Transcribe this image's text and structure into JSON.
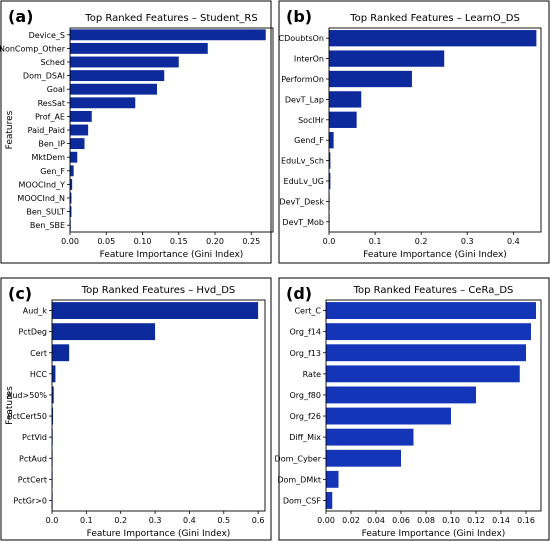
{
  "colors": {
    "bar": "#0c2a9c",
    "bar_alt": "#1535b8",
    "axis": "#000000",
    "text": "#000000"
  },
  "chart_data": [
    {
      "type": "bar",
      "orientation": "horizontal",
      "panel_label": "(a)",
      "title": "Top Ranked Features – Student_RS",
      "xlabel": "Feature Importance (Gini Index)",
      "ylabel": "Features",
      "xlim": [
        0,
        0.28
      ],
      "xticks": [
        "0.00",
        "0.05",
        "0.10",
        "0.15",
        "0.20",
        "0.25"
      ],
      "xtick_values": [
        0,
        0.05,
        0.1,
        0.15,
        0.2,
        0.25
      ],
      "categories": [
        "Device_S",
        "NonComp_Other",
        "Sched",
        "Dom_DSAI",
        "Goal",
        "ResSat",
        "Prof_AE",
        "Paid_Paid",
        "Ben_IP",
        "MktDem",
        "Gen_F",
        "MOOCInd_Y",
        "MOOCInd_N",
        "Ben_SULT",
        "Ben_SBE"
      ],
      "values": [
        0.27,
        0.19,
        0.15,
        0.13,
        0.12,
        0.09,
        0.03,
        0.025,
        0.02,
        0.01,
        0.005,
        0.003,
        0.002,
        0.002,
        0.001
      ]
    },
    {
      "type": "bar",
      "orientation": "horizontal",
      "panel_label": "(b)",
      "title": "Top Ranked Features – LearnO_DS",
      "xlabel": "Feature Importance (Gini Index)",
      "ylabel": "",
      "xlim": [
        0,
        0.46
      ],
      "xticks": [
        "0.0",
        "0.1",
        "0.2",
        "0.3",
        "0.4"
      ],
      "xtick_values": [
        0,
        0.1,
        0.2,
        0.3,
        0.4
      ],
      "categories": [
        "CDoubtsOn",
        "InterOn",
        "PerformOn",
        "DevT_Lap",
        "SoclHr",
        "Gend_F",
        "EduLv_Sch",
        "EduLv_UG",
        "DevT_Desk",
        "DevT_Mob"
      ],
      "values": [
        0.45,
        0.25,
        0.18,
        0.07,
        0.06,
        0.01,
        0.003,
        0.003,
        0.001,
        0.001
      ]
    },
    {
      "type": "bar",
      "orientation": "horizontal",
      "panel_label": "(c)",
      "title": "Top Ranked Features – Hvd_DS",
      "xlabel": "Feature Importance (Gini Index)",
      "ylabel": "Features",
      "xlim": [
        0,
        0.62
      ],
      "xticks": [
        "0.0",
        "0.1",
        "0.2",
        "0.3",
        "0.4",
        "0.5",
        "0.6"
      ],
      "xtick_values": [
        0,
        0.1,
        0.2,
        0.3,
        0.4,
        0.5,
        0.6
      ],
      "categories": [
        "Aud_k",
        "PctDeg",
        "Cert",
        "HCC",
        "Aud>50%",
        "PctCert50",
        "PctVid",
        "PctAud",
        "PctCert",
        "PctGr>0"
      ],
      "values": [
        0.6,
        0.3,
        0.05,
        0.01,
        0.005,
        0.003,
        0.002,
        0.001,
        0.001,
        0.001
      ]
    },
    {
      "type": "bar",
      "orientation": "horizontal",
      "panel_label": "(d)",
      "title": "Top Ranked Features – CeRa_DS",
      "xlabel": "Feature Importance (Gini Index)",
      "ylabel": "",
      "xlim": [
        0,
        0.172
      ],
      "xticks": [
        "0.00",
        "0.02",
        "0.04",
        "0.06",
        "0.08",
        "0.10",
        "0.12",
        "0.14",
        "0.16"
      ],
      "xtick_values": [
        0,
        0.02,
        0.04,
        0.06,
        0.08,
        0.1,
        0.12,
        0.14,
        0.16
      ],
      "categories": [
        "Cert_C",
        "Org_f14",
        "Org_f13",
        "Rate",
        "Org_f80",
        "Org_f26",
        "Diff_Mix",
        "Dom_Cyber",
        "Dom_DMkt",
        "Dom_CSF"
      ],
      "values": [
        0.168,
        0.164,
        0.16,
        0.155,
        0.12,
        0.1,
        0.07,
        0.06,
        0.01,
        0.005
      ]
    }
  ]
}
